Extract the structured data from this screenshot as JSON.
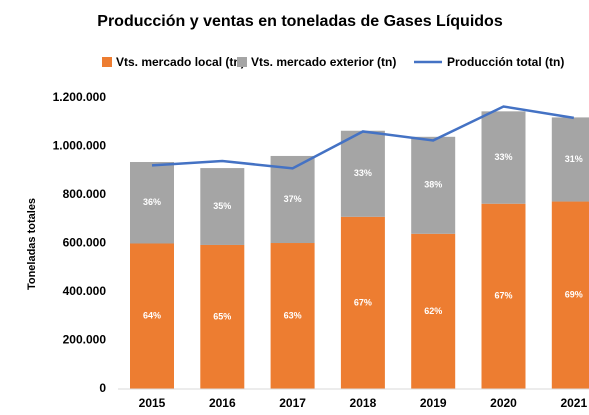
{
  "chart_data": {
    "type": "stacked_bar_line",
    "title": "Producción y ventas en toneladas de Gases Líquidos",
    "ylabel": "Toneladas totales",
    "categories": [
      "2015",
      "2016",
      "2017",
      "2018",
      "2019",
      "2020",
      "2021"
    ],
    "series": [
      {
        "name": "Vts. mercado local (tn)",
        "color": "#ed7d31",
        "kind": "bar",
        "values": [
          600000,
          594000,
          602000,
          710000,
          640000,
          764000,
          773000
        ],
        "labels": [
          "64%",
          "65%",
          "63%",
          "67%",
          "62%",
          "67%",
          "69%"
        ]
      },
      {
        "name": "Vts. mercado exterior (tn)",
        "color": "#a5a5a5",
        "kind": "bar",
        "values": [
          336000,
          317000,
          359000,
          355000,
          400000,
          381000,
          347000
        ],
        "labels": [
          "36%",
          "35%",
          "37%",
          "33%",
          "38%",
          "33%",
          "31%"
        ]
      },
      {
        "name": "Producción total (tn)",
        "color": "#4472c4",
        "kind": "line",
        "values": [
          922000,
          940000,
          910000,
          1062000,
          1025000,
          1165000,
          1118000
        ]
      }
    ],
    "ylim": [
      0,
      1200000
    ],
    "yticks": [
      0,
      {
        "value": 200000,
        "label": "200.000"
      },
      {
        "value": 400000,
        "label": "400.000"
      },
      {
        "value": 600000,
        "label": "600.000"
      },
      {
        "value": 800000,
        "label": "800.000"
      },
      {
        "value": 1000000,
        "label": "1.000.000"
      },
      {
        "value": 1200000,
        "label": "1.200.000"
      }
    ],
    "legend": "top"
  }
}
